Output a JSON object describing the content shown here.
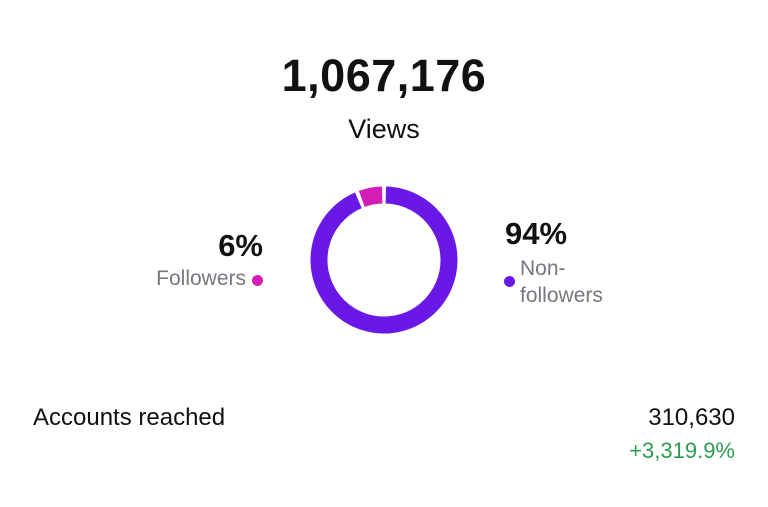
{
  "views": {
    "count": "1,067,176",
    "label": "Views"
  },
  "breakdown": {
    "type": "donut",
    "categories": [
      "Followers",
      "Non-followers"
    ],
    "values": [
      6,
      94
    ],
    "value_labels": [
      "6%",
      "94%"
    ],
    "colors": [
      "#d41cb6",
      "#6a18e6"
    ]
  },
  "accounts_reached": {
    "label": "Accounts reached",
    "count": "310,630",
    "change": "+3,319.9%"
  }
}
